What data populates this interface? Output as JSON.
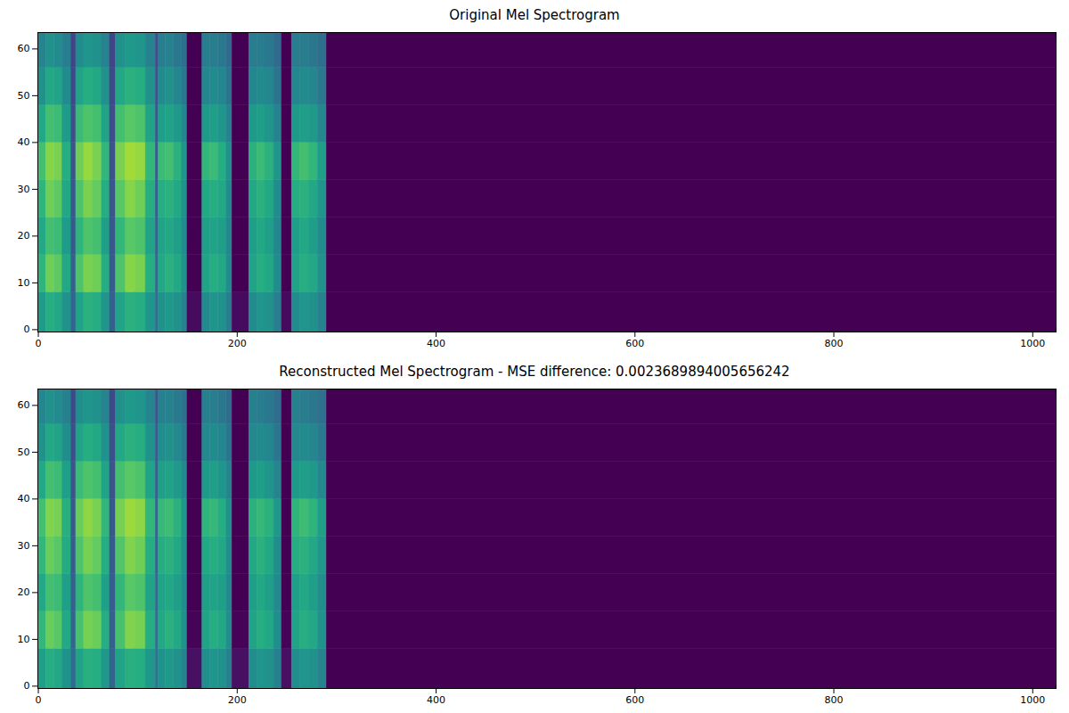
{
  "chart_data": [
    {
      "type": "heatmap",
      "title": "Original Mel Spectrogram",
      "xlim": [
        -0.5,
        1023.5
      ],
      "ylim": [
        -0.5,
        63.5
      ],
      "xticks": [
        0,
        200,
        400,
        600,
        800,
        1000
      ],
      "yticks": [
        0,
        10,
        20,
        30,
        40,
        50,
        60
      ],
      "color": "viridis",
      "color_range": [
        0,
        1
      ],
      "x_edges": [
        -0.5,
        8,
        16,
        24,
        33,
        38,
        46,
        55,
        64,
        72,
        78,
        88,
        98,
        108,
        118,
        121,
        128,
        136,
        144,
        150,
        165,
        173,
        181,
        189,
        195,
        212,
        220,
        228,
        237,
        245,
        255,
        263,
        272,
        281,
        290,
        1023.5
      ],
      "y_edges": [
        -0.5,
        8,
        16,
        24,
        32,
        40,
        48,
        56,
        63.5
      ],
      "cells": [
        [
          0.55,
          0.65,
          0.6,
          0.65,
          0.7,
          0.6,
          0.5,
          0.45
        ],
        [
          0.62,
          0.78,
          0.7,
          0.78,
          0.82,
          0.7,
          0.6,
          0.5
        ],
        [
          0.6,
          0.75,
          0.68,
          0.75,
          0.8,
          0.68,
          0.58,
          0.48
        ],
        [
          0.5,
          0.6,
          0.55,
          0.6,
          0.62,
          0.55,
          0.48,
          0.42
        ],
        [
          0.32,
          0.3,
          0.28,
          0.27,
          0.26,
          0.24,
          0.22,
          0.2
        ],
        [
          0.58,
          0.72,
          0.65,
          0.72,
          0.78,
          0.68,
          0.58,
          0.48
        ],
        [
          0.64,
          0.8,
          0.72,
          0.8,
          0.84,
          0.72,
          0.62,
          0.52
        ],
        [
          0.62,
          0.78,
          0.7,
          0.76,
          0.8,
          0.7,
          0.6,
          0.5
        ],
        [
          0.52,
          0.62,
          0.56,
          0.62,
          0.66,
          0.58,
          0.5,
          0.44
        ],
        [
          0.3,
          0.28,
          0.27,
          0.26,
          0.25,
          0.23,
          0.22,
          0.2
        ],
        [
          0.58,
          0.72,
          0.66,
          0.74,
          0.8,
          0.7,
          0.6,
          0.5
        ],
        [
          0.64,
          0.82,
          0.74,
          0.82,
          0.86,
          0.74,
          0.64,
          0.54
        ],
        [
          0.62,
          0.8,
          0.72,
          0.78,
          0.84,
          0.72,
          0.62,
          0.52
        ],
        [
          0.52,
          0.62,
          0.58,
          0.62,
          0.66,
          0.58,
          0.5,
          0.44
        ],
        [
          0.36,
          0.34,
          0.32,
          0.3,
          0.3,
          0.28,
          0.26,
          0.24
        ],
        [
          0.5,
          0.6,
          0.58,
          0.62,
          0.68,
          0.56,
          0.48,
          0.42
        ],
        [
          0.54,
          0.64,
          0.6,
          0.64,
          0.7,
          0.58,
          0.5,
          0.44
        ],
        [
          0.5,
          0.6,
          0.56,
          0.6,
          0.64,
          0.54,
          0.46,
          0.4
        ],
        [
          0.44,
          0.5,
          0.48,
          0.5,
          0.52,
          0.46,
          0.4,
          0.36
        ],
        [
          0.03,
          0,
          0,
          0,
          0,
          0,
          0,
          0
        ],
        [
          0.48,
          0.58,
          0.56,
          0.6,
          0.66,
          0.54,
          0.46,
          0.42
        ],
        [
          0.52,
          0.62,
          0.58,
          0.62,
          0.68,
          0.56,
          0.48,
          0.42
        ],
        [
          0.5,
          0.6,
          0.56,
          0.6,
          0.62,
          0.52,
          0.46,
          0.4
        ],
        [
          0.42,
          0.48,
          0.46,
          0.48,
          0.5,
          0.44,
          0.38,
          0.34
        ],
        [
          0.03,
          0,
          0,
          0,
          0,
          0,
          0,
          0
        ],
        [
          0.48,
          0.58,
          0.56,
          0.6,
          0.64,
          0.54,
          0.46,
          0.42
        ],
        [
          0.52,
          0.62,
          0.6,
          0.64,
          0.68,
          0.56,
          0.48,
          0.42
        ],
        [
          0.5,
          0.6,
          0.56,
          0.6,
          0.64,
          0.52,
          0.46,
          0.4
        ],
        [
          0.42,
          0.48,
          0.46,
          0.48,
          0.52,
          0.44,
          0.38,
          0.34
        ],
        [
          0.03,
          0,
          0,
          0,
          0,
          0,
          0,
          0
        ],
        [
          0.48,
          0.58,
          0.56,
          0.62,
          0.66,
          0.54,
          0.46,
          0.42
        ],
        [
          0.52,
          0.62,
          0.6,
          0.64,
          0.7,
          0.56,
          0.48,
          0.42
        ],
        [
          0.5,
          0.6,
          0.56,
          0.6,
          0.66,
          0.54,
          0.46,
          0.4
        ],
        [
          0.44,
          0.5,
          0.48,
          0.52,
          0.56,
          0.46,
          0.4,
          0.36
        ],
        [
          0,
          0,
          0,
          0,
          0,
          0,
          0,
          0
        ]
      ]
    },
    {
      "type": "heatmap",
      "title": "Reconstructed Mel Spectrogram - MSE difference: 0.0023689894005656242",
      "xlim": [
        -0.5,
        1023.5
      ],
      "ylim": [
        -0.5,
        63.5
      ],
      "xticks": [
        0,
        200,
        400,
        600,
        800,
        1000
      ],
      "yticks": [
        0,
        10,
        20,
        30,
        40,
        50,
        60
      ],
      "color": "viridis",
      "color_range": [
        0,
        1
      ],
      "x_edges": [
        -0.5,
        8,
        16,
        24,
        33,
        38,
        46,
        55,
        64,
        72,
        78,
        88,
        98,
        108,
        118,
        121,
        128,
        136,
        144,
        150,
        165,
        173,
        181,
        189,
        195,
        212,
        220,
        228,
        237,
        245,
        255,
        263,
        272,
        281,
        290,
        1023.5
      ],
      "y_edges": [
        -0.5,
        8,
        16,
        24,
        32,
        40,
        48,
        56,
        63.5
      ],
      "cells": [
        [
          0.56,
          0.66,
          0.6,
          0.66,
          0.7,
          0.6,
          0.51,
          0.46
        ],
        [
          0.62,
          0.77,
          0.7,
          0.77,
          0.81,
          0.7,
          0.6,
          0.5
        ],
        [
          0.6,
          0.74,
          0.68,
          0.74,
          0.79,
          0.68,
          0.58,
          0.48
        ],
        [
          0.51,
          0.6,
          0.56,
          0.61,
          0.63,
          0.56,
          0.49,
          0.43
        ],
        [
          0.34,
          0.32,
          0.3,
          0.29,
          0.28,
          0.26,
          0.24,
          0.22
        ],
        [
          0.58,
          0.71,
          0.65,
          0.72,
          0.77,
          0.68,
          0.58,
          0.49
        ],
        [
          0.63,
          0.79,
          0.72,
          0.79,
          0.83,
          0.72,
          0.62,
          0.52
        ],
        [
          0.62,
          0.77,
          0.7,
          0.76,
          0.8,
          0.7,
          0.6,
          0.5
        ],
        [
          0.53,
          0.62,
          0.57,
          0.62,
          0.66,
          0.58,
          0.51,
          0.45
        ],
        [
          0.32,
          0.3,
          0.29,
          0.28,
          0.27,
          0.25,
          0.24,
          0.22
        ],
        [
          0.58,
          0.71,
          0.66,
          0.73,
          0.79,
          0.7,
          0.6,
          0.5
        ],
        [
          0.63,
          0.81,
          0.74,
          0.81,
          0.85,
          0.74,
          0.64,
          0.54
        ],
        [
          0.62,
          0.79,
          0.72,
          0.78,
          0.83,
          0.72,
          0.62,
          0.52
        ],
        [
          0.53,
          0.62,
          0.58,
          0.62,
          0.66,
          0.58,
          0.51,
          0.45
        ],
        [
          0.39,
          0.37,
          0.35,
          0.33,
          0.33,
          0.31,
          0.29,
          0.27
        ],
        [
          0.51,
          0.6,
          0.58,
          0.62,
          0.67,
          0.56,
          0.49,
          0.43
        ],
        [
          0.54,
          0.64,
          0.6,
          0.64,
          0.69,
          0.58,
          0.5,
          0.44
        ],
        [
          0.5,
          0.6,
          0.56,
          0.6,
          0.64,
          0.54,
          0.47,
          0.41
        ],
        [
          0.45,
          0.51,
          0.49,
          0.51,
          0.53,
          0.47,
          0.41,
          0.37
        ],
        [
          0.04,
          0.01,
          0,
          0,
          0,
          0,
          0,
          0
        ],
        [
          0.49,
          0.58,
          0.56,
          0.6,
          0.65,
          0.54,
          0.47,
          0.43
        ],
        [
          0.52,
          0.62,
          0.58,
          0.62,
          0.67,
          0.56,
          0.48,
          0.42
        ],
        [
          0.5,
          0.6,
          0.56,
          0.6,
          0.62,
          0.52,
          0.46,
          0.4
        ],
        [
          0.43,
          0.49,
          0.47,
          0.49,
          0.51,
          0.45,
          0.39,
          0.35
        ],
        [
          0.04,
          0.01,
          0,
          0,
          0,
          0,
          0,
          0
        ],
        [
          0.49,
          0.58,
          0.56,
          0.6,
          0.64,
          0.54,
          0.47,
          0.43
        ],
        [
          0.52,
          0.62,
          0.6,
          0.64,
          0.67,
          0.56,
          0.48,
          0.42
        ],
        [
          0.5,
          0.6,
          0.56,
          0.6,
          0.64,
          0.52,
          0.46,
          0.4
        ],
        [
          0.43,
          0.49,
          0.47,
          0.49,
          0.53,
          0.45,
          0.39,
          0.35
        ],
        [
          0.04,
          0.01,
          0,
          0,
          0,
          0,
          0,
          0
        ],
        [
          0.49,
          0.58,
          0.56,
          0.62,
          0.65,
          0.54,
          0.47,
          0.43
        ],
        [
          0.52,
          0.62,
          0.6,
          0.64,
          0.69,
          0.56,
          0.48,
          0.42
        ],
        [
          0.5,
          0.6,
          0.56,
          0.6,
          0.65,
          0.54,
          0.46,
          0.4
        ],
        [
          0.45,
          0.51,
          0.49,
          0.53,
          0.56,
          0.47,
          0.41,
          0.37
        ],
        [
          0,
          0,
          0,
          0,
          0,
          0,
          0,
          0
        ]
      ]
    }
  ]
}
